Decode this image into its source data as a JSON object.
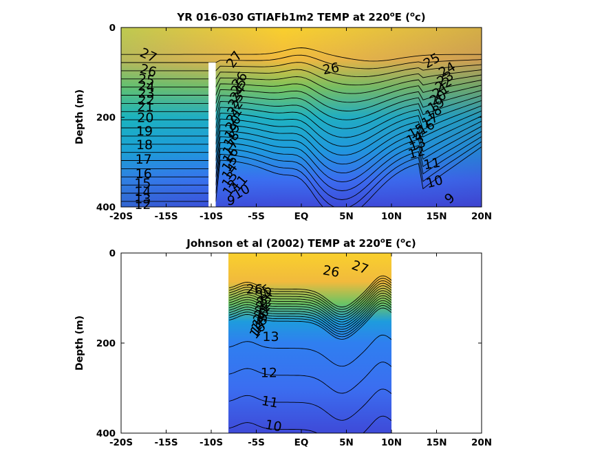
{
  "chart_data": [
    {
      "type": "heatmap",
      "title": "YR 016-030 GTIAFb1m2 TEMP at 220",
      "title_sup": "o",
      "title_tail": "E (",
      "title_sup2": "o",
      "title_end": "c)",
      "ylabel": "Depth (m)",
      "xlim": [
        -20,
        20
      ],
      "ylim": [
        0,
        400
      ],
      "y_reversed": true,
      "xticks": [
        {
          "v": -20,
          "label": "-20S"
        },
        {
          "v": -15,
          "label": "-15S"
        },
        {
          "v": -10,
          "label": "-10S"
        },
        {
          "v": -5,
          "label": "-5S"
        },
        {
          "v": 0,
          "label": "EQ"
        },
        {
          "v": 5,
          "label": "5N"
        },
        {
          "v": 10,
          "label": "10N"
        },
        {
          "v": 15,
          "label": "15N"
        },
        {
          "v": 20,
          "label": "20N"
        }
      ],
      "yticks": [
        {
          "v": 0,
          "label": "0"
        },
        {
          "v": 200,
          "label": "200"
        },
        {
          "v": 400,
          "label": "400"
        }
      ],
      "data_x_range": [
        -20,
        20
      ],
      "data_gap": {
        "x0": -10.3,
        "x1": -9.5,
        "y0": 78,
        "y1": 400
      },
      "contour_levels": [
        9,
        10,
        11,
        12,
        13,
        14,
        15,
        16,
        17,
        18,
        19,
        20,
        21,
        22,
        23,
        24,
        25,
        26,
        27
      ],
      "colormap": [
        "#3e26a8",
        "#3b5cfc",
        "#1e9cdd",
        "#0cb8b6",
        "#4bc879",
        "#b2c247",
        "#f1ba3d",
        "#f9d02d",
        "#f9fb15"
      ],
      "contour_labels": [
        {
          "text": "27",
          "x": -17.0,
          "y": 63,
          "rot": 25
        },
        {
          "text": "26",
          "x": -17.0,
          "y": 97,
          "rot": 15
        },
        {
          "text": "25",
          "x": -17.2,
          "y": 118,
          "rot": 8
        },
        {
          "text": "24",
          "x": -17.2,
          "y": 133,
          "rot": 5
        },
        {
          "text": "23",
          "x": -17.2,
          "y": 148,
          "rot": 0
        },
        {
          "text": "22",
          "x": -17.2,
          "y": 163,
          "rot": 0
        },
        {
          "text": "21",
          "x": -17.3,
          "y": 178,
          "rot": 0
        },
        {
          "text": "20",
          "x": -17.3,
          "y": 202,
          "rot": 0
        },
        {
          "text": "19",
          "x": -17.4,
          "y": 232,
          "rot": 0
        },
        {
          "text": "18",
          "x": -17.4,
          "y": 263,
          "rot": 0
        },
        {
          "text": "17",
          "x": -17.5,
          "y": 295,
          "rot": 0
        },
        {
          "text": "16",
          "x": -17.5,
          "y": 327,
          "rot": 0
        },
        {
          "text": "15",
          "x": -17.6,
          "y": 349,
          "rot": 0
        },
        {
          "text": "14",
          "x": -17.6,
          "y": 367,
          "rot": 0
        },
        {
          "text": "13",
          "x": -17.6,
          "y": 383,
          "rot": 0
        },
        {
          "text": "12",
          "x": -17.6,
          "y": 396,
          "rot": 0
        },
        {
          "text": "27",
          "x": -7.4,
          "y": 72,
          "rot": -55
        },
        {
          "text": "26",
          "x": -6.8,
          "y": 118,
          "rot": -55
        },
        {
          "text": "25",
          "x": -6.9,
          "y": 132,
          "rot": -55
        },
        {
          "text": "24",
          "x": -7.0,
          "y": 147,
          "rot": -55
        },
        {
          "text": "23",
          "x": -7.2,
          "y": 163,
          "rot": -55
        },
        {
          "text": "22",
          "x": -7.3,
          "y": 180,
          "rot": -55
        },
        {
          "text": "21",
          "x": -7.4,
          "y": 197,
          "rot": -55
        },
        {
          "text": "20",
          "x": -7.5,
          "y": 214,
          "rot": -55
        },
        {
          "text": "19",
          "x": -7.6,
          "y": 232,
          "rot": -55
        },
        {
          "text": "18",
          "x": -7.7,
          "y": 250,
          "rot": -55
        },
        {
          "text": "17",
          "x": -7.8,
          "y": 268,
          "rot": -55
        },
        {
          "text": "16",
          "x": -7.8,
          "y": 286,
          "rot": -55
        },
        {
          "text": "15",
          "x": -7.9,
          "y": 304,
          "rot": -55
        },
        {
          "text": "14",
          "x": -7.9,
          "y": 322,
          "rot": -55
        },
        {
          "text": "13",
          "x": -7.9,
          "y": 340,
          "rot": -55
        },
        {
          "text": "12",
          "x": -7.8,
          "y": 358,
          "rot": -55
        },
        {
          "text": "11",
          "x": -6.8,
          "y": 348,
          "rot": -50
        },
        {
          "text": "10",
          "x": -6.6,
          "y": 367,
          "rot": -30
        },
        {
          "text": "9",
          "x": -7.8,
          "y": 387,
          "rot": 0
        },
        {
          "text": "26",
          "x": 3.3,
          "y": 93,
          "rot": -10
        },
        {
          "text": "25",
          "x": 14.5,
          "y": 75,
          "rot": -30
        },
        {
          "text": "24",
          "x": 16.2,
          "y": 95,
          "rot": -30
        },
        {
          "text": "23",
          "x": 16.0,
          "y": 115,
          "rot": -30
        },
        {
          "text": "22",
          "x": 15.8,
          "y": 128,
          "rot": -30
        },
        {
          "text": "21",
          "x": 15.5,
          "y": 143,
          "rot": -30
        },
        {
          "text": "20",
          "x": 15.2,
          "y": 158,
          "rot": -30
        },
        {
          "text": "19",
          "x": 15.0,
          "y": 174,
          "rot": -30
        },
        {
          "text": "18",
          "x": 14.7,
          "y": 191,
          "rot": -30
        },
        {
          "text": "17",
          "x": 14.3,
          "y": 208,
          "rot": -30
        },
        {
          "text": "16",
          "x": 13.9,
          "y": 224,
          "rot": -30
        },
        {
          "text": "15",
          "x": 12.8,
          "y": 232,
          "rot": -30
        },
        {
          "text": "14",
          "x": 12.6,
          "y": 248,
          "rot": -25
        },
        {
          "text": "13",
          "x": 12.9,
          "y": 262,
          "rot": -20
        },
        {
          "text": "12",
          "x": 12.8,
          "y": 280,
          "rot": -15
        },
        {
          "text": "11",
          "x": 14.5,
          "y": 305,
          "rot": -10
        },
        {
          "text": "10",
          "x": 14.8,
          "y": 345,
          "rot": -15
        },
        {
          "text": "9",
          "x": 16.5,
          "y": 382,
          "rot": -40
        }
      ],
      "field_description_anchors": {
        "isotherm_26_depth": [
          [
            -20,
            75
          ],
          [
            -10,
            70
          ],
          [
            -5,
            85
          ],
          [
            0,
            70
          ],
          [
            3,
            92
          ],
          [
            8,
            110
          ],
          [
            12,
            105
          ],
          [
            16,
            70
          ],
          [
            20,
            60
          ]
        ]
      }
    },
    {
      "type": "heatmap",
      "title": "Johnson et al (2002) TEMP at 220",
      "title_sup": "o",
      "title_tail": "E (",
      "title_sup2": "o",
      "title_end": "c)",
      "ylabel": "Depth (m)",
      "xlim": [
        -20,
        20
      ],
      "ylim": [
        0,
        400
      ],
      "y_reversed": true,
      "xticks": [
        {
          "v": -20,
          "label": "-20S"
        },
        {
          "v": -15,
          "label": "-15S"
        },
        {
          "v": -10,
          "label": "-10S"
        },
        {
          "v": -5,
          "label": "-5S"
        },
        {
          "v": 0,
          "label": "EQ"
        },
        {
          "v": 5,
          "label": "5N"
        },
        {
          "v": 10,
          "label": "10N"
        },
        {
          "v": 15,
          "label": "15N"
        },
        {
          "v": 20,
          "label": "20N"
        }
      ],
      "yticks": [
        {
          "v": 0,
          "label": "0"
        },
        {
          "v": 200,
          "label": "200"
        },
        {
          "v": 400,
          "label": "400"
        }
      ],
      "data_x_range": [
        -8,
        10
      ],
      "contour_levels": [
        10,
        11,
        12,
        13,
        14,
        15,
        16,
        17,
        18,
        19,
        20,
        21,
        22,
        23,
        24,
        25,
        26,
        27
      ],
      "colormap": [
        "#3e26a8",
        "#3b5cfc",
        "#1e9cdd",
        "#0cb8b6",
        "#4bc879",
        "#b2c247",
        "#f1ba3d",
        "#f9d02d",
        "#f9fb15"
      ],
      "contour_labels": [
        {
          "text": "27",
          "x": 6.5,
          "y": 33,
          "rot": 20
        },
        {
          "text": "26",
          "x": 3.3,
          "y": 42,
          "rot": 10
        },
        {
          "text": "26",
          "x": -5.2,
          "y": 82,
          "rot": 0
        },
        {
          "text": "25",
          "x": -4.1,
          "y": 88,
          "rot": -40
        },
        {
          "text": "24",
          "x": -4.0,
          "y": 100,
          "rot": -50
        },
        {
          "text": "23",
          "x": -4.1,
          "y": 110,
          "rot": -50
        },
        {
          "text": "22",
          "x": -4.2,
          "y": 120,
          "rot": -50
        },
        {
          "text": "21",
          "x": -4.3,
          "y": 130,
          "rot": -50
        },
        {
          "text": "20",
          "x": -4.4,
          "y": 140,
          "rot": -50
        },
        {
          "text": "19",
          "x": -4.5,
          "y": 150,
          "rot": -50
        },
        {
          "text": "18",
          "x": -4.6,
          "y": 158,
          "rot": -50
        },
        {
          "text": "17",
          "x": -4.7,
          "y": 166,
          "rot": -50
        },
        {
          "text": "16",
          "x": -4.8,
          "y": 173,
          "rot": -50
        },
        {
          "text": "13",
          "x": -3.4,
          "y": 187,
          "rot": 0
        },
        {
          "text": "12",
          "x": -3.6,
          "y": 267,
          "rot": 0
        },
        {
          "text": "11",
          "x": -3.5,
          "y": 332,
          "rot": 10
        },
        {
          "text": "10",
          "x": -3.1,
          "y": 385,
          "rot": 10
        }
      ]
    }
  ]
}
